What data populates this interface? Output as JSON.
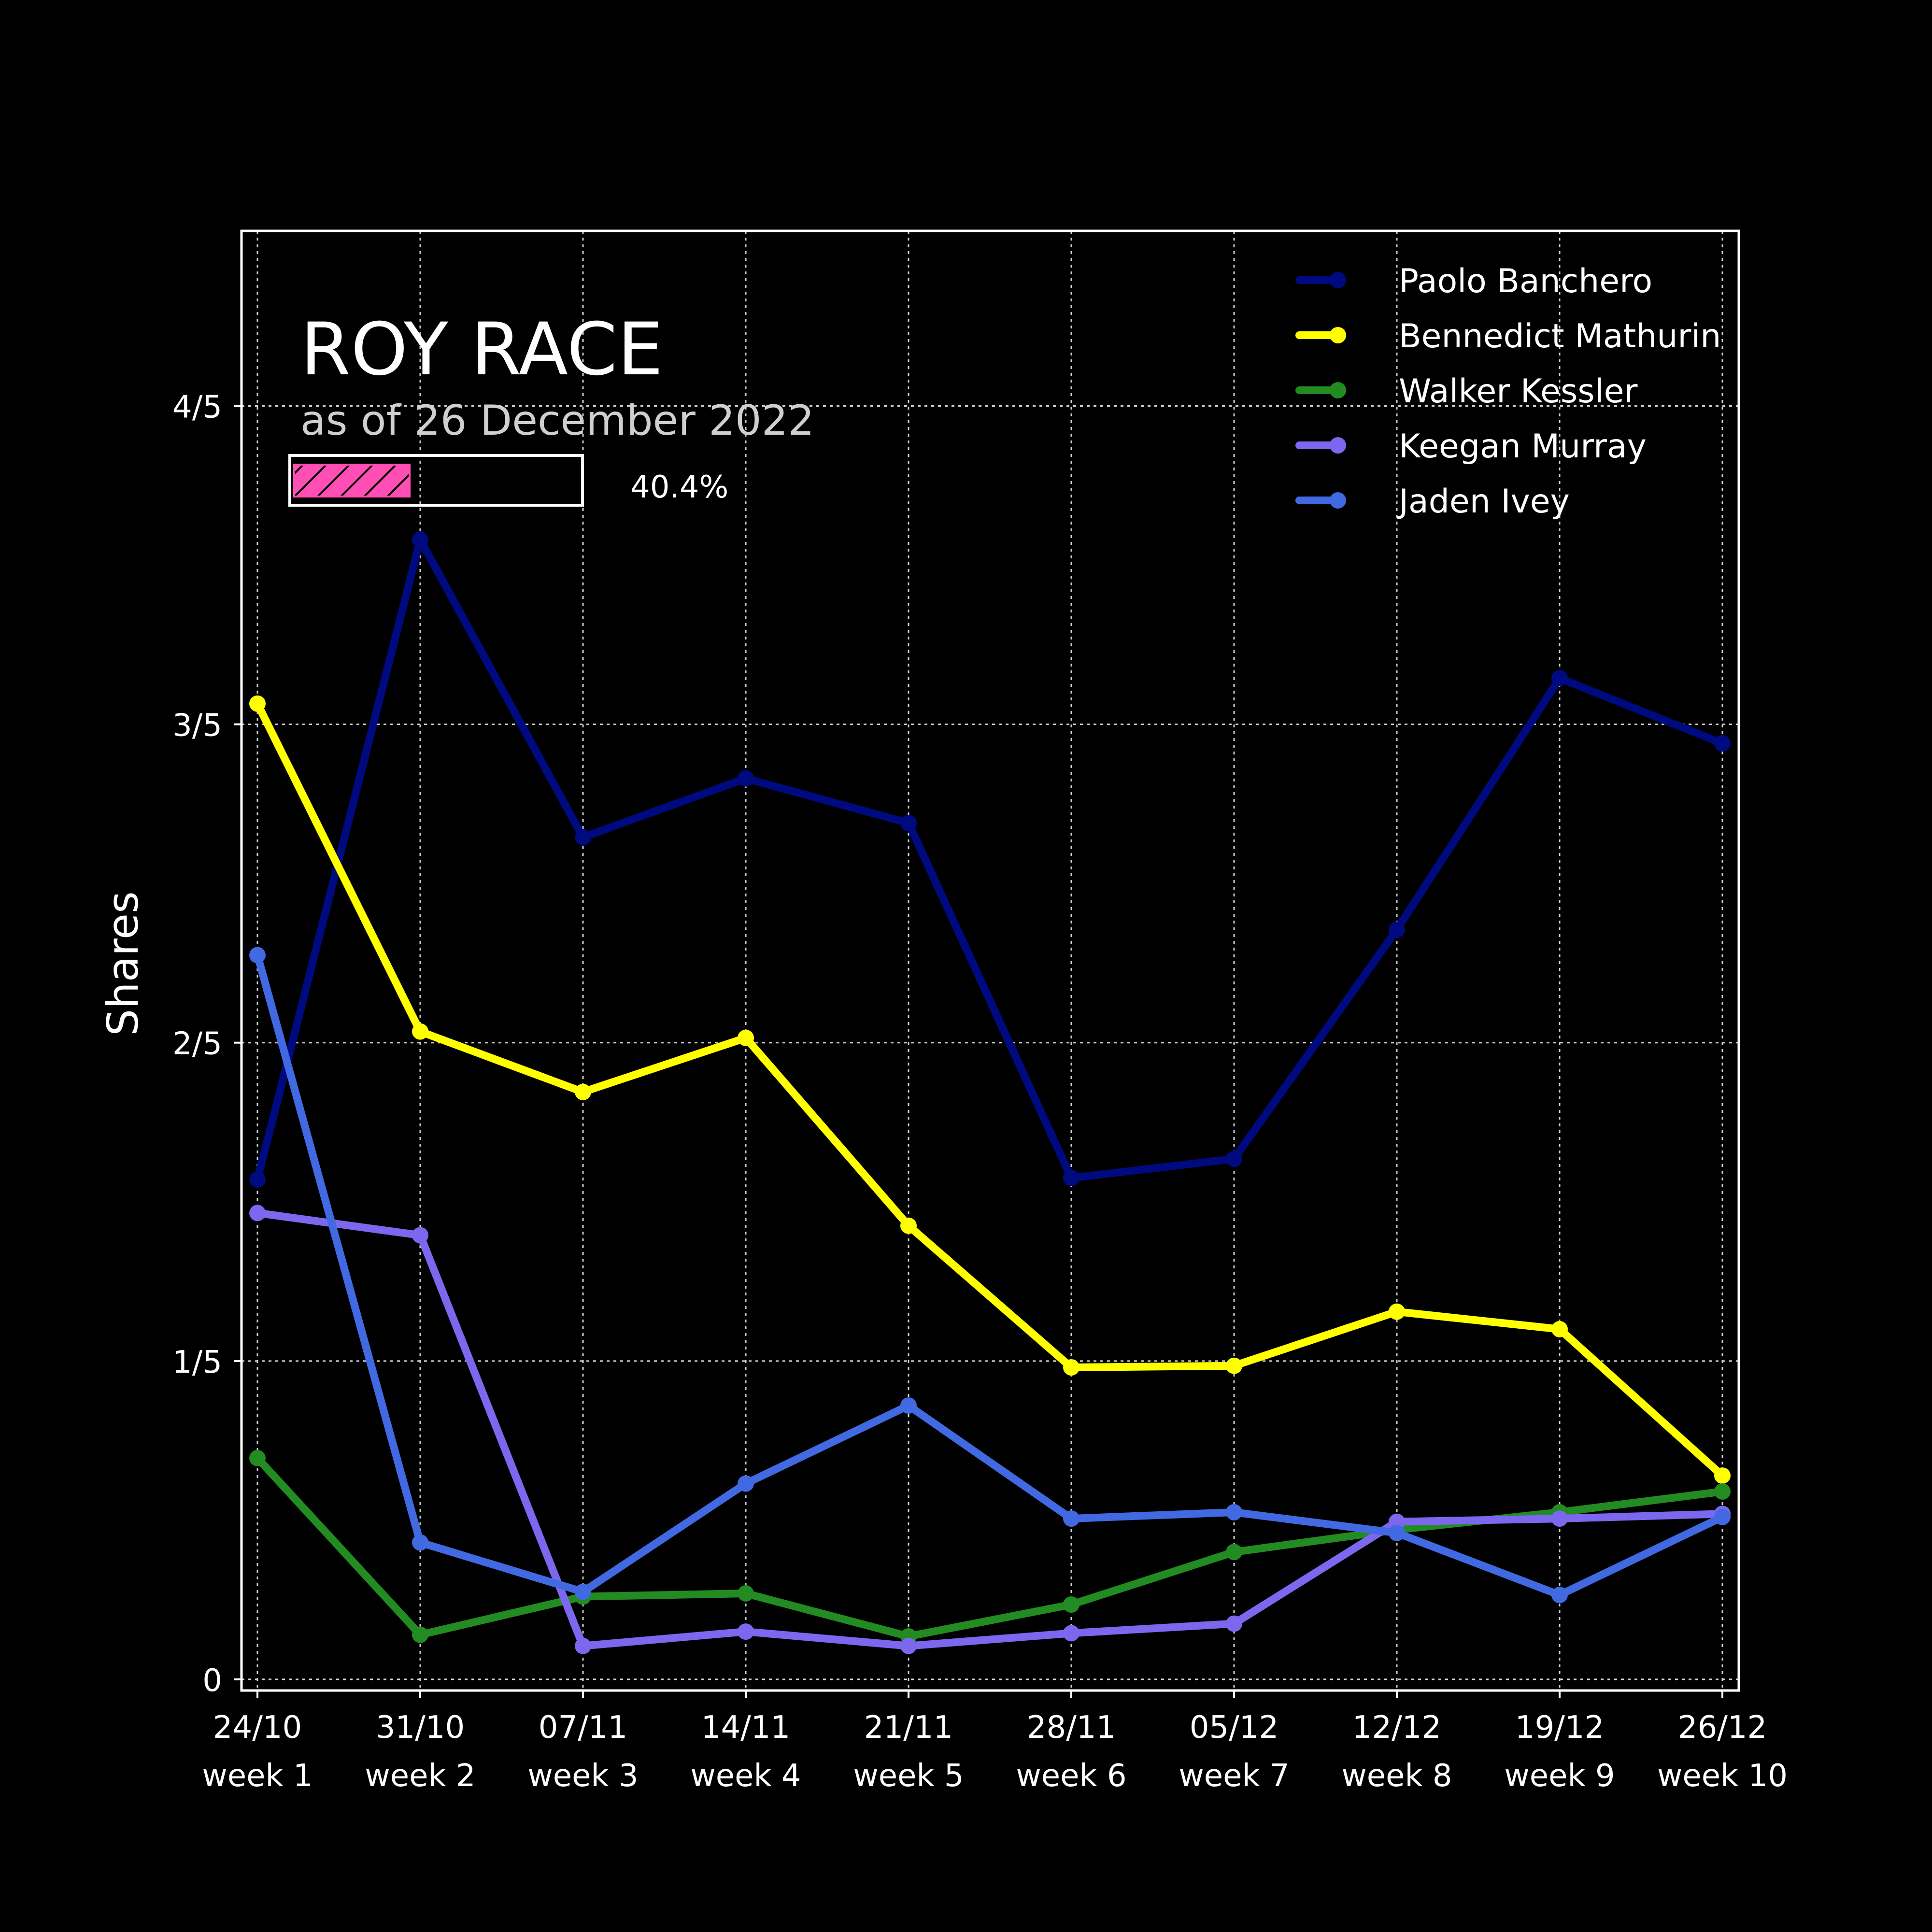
{
  "chart_data": {
    "type": "line",
    "title": "ROY RACE",
    "subtitle": "as of 26 December 2022",
    "ylabel": "Shares",
    "xlabel": "",
    "x": [
      "24/10",
      "31/10",
      "07/11",
      "14/11",
      "21/11",
      "28/11",
      "05/12",
      "12/12",
      "19/12",
      "26/12"
    ],
    "x_sub": [
      "week 1",
      "week 2",
      "week 3",
      "week 4",
      "week 5",
      "week 6",
      "week 7",
      "week 8",
      "week 9",
      "week 10"
    ],
    "ylim": [
      -0.007,
      0.91
    ],
    "yticks": [
      {
        "value": 0,
        "label": "0"
      },
      {
        "value": 0.2,
        "label": "1/5"
      },
      {
        "value": 0.4,
        "label": "2/5"
      },
      {
        "value": 0.6,
        "label": "3/5"
      },
      {
        "value": 0.8,
        "label": "4/5"
      }
    ],
    "grid": true,
    "legend_position": "top-right",
    "progress": {
      "value": 0.404,
      "label": "40.4%",
      "color": "#ff4fb5"
    },
    "series": [
      {
        "name": "Paolo Banchero",
        "color": "#000a80",
        "values": [
          0.314,
          0.716,
          0.529,
          0.566,
          0.538,
          0.315,
          0.327,
          0.471,
          0.629,
          0.588
        ]
      },
      {
        "name": "Bennedict Mathurin",
        "color": "#ffff00",
        "values": [
          0.613,
          0.407,
          0.369,
          0.403,
          0.285,
          0.196,
          0.197,
          0.231,
          0.22,
          0.128
        ]
      },
      {
        "name": "Walker Kessler",
        "color": "#228b22",
        "values": [
          0.139,
          0.028,
          0.052,
          0.054,
          0.027,
          0.047,
          0.08,
          0.094,
          0.105,
          0.118
        ]
      },
      {
        "name": "Keegan Murray",
        "color": "#7b68ee",
        "values": [
          0.293,
          0.279,
          0.021,
          0.03,
          0.021,
          0.029,
          0.035,
          0.099,
          0.101,
          0.104
        ]
      },
      {
        "name": "Jaden Ivey",
        "color": "#4169e1",
        "values": [
          0.455,
          0.086,
          0.055,
          0.123,
          0.172,
          0.101,
          0.105,
          0.092,
          0.053,
          0.102
        ]
      }
    ]
  }
}
